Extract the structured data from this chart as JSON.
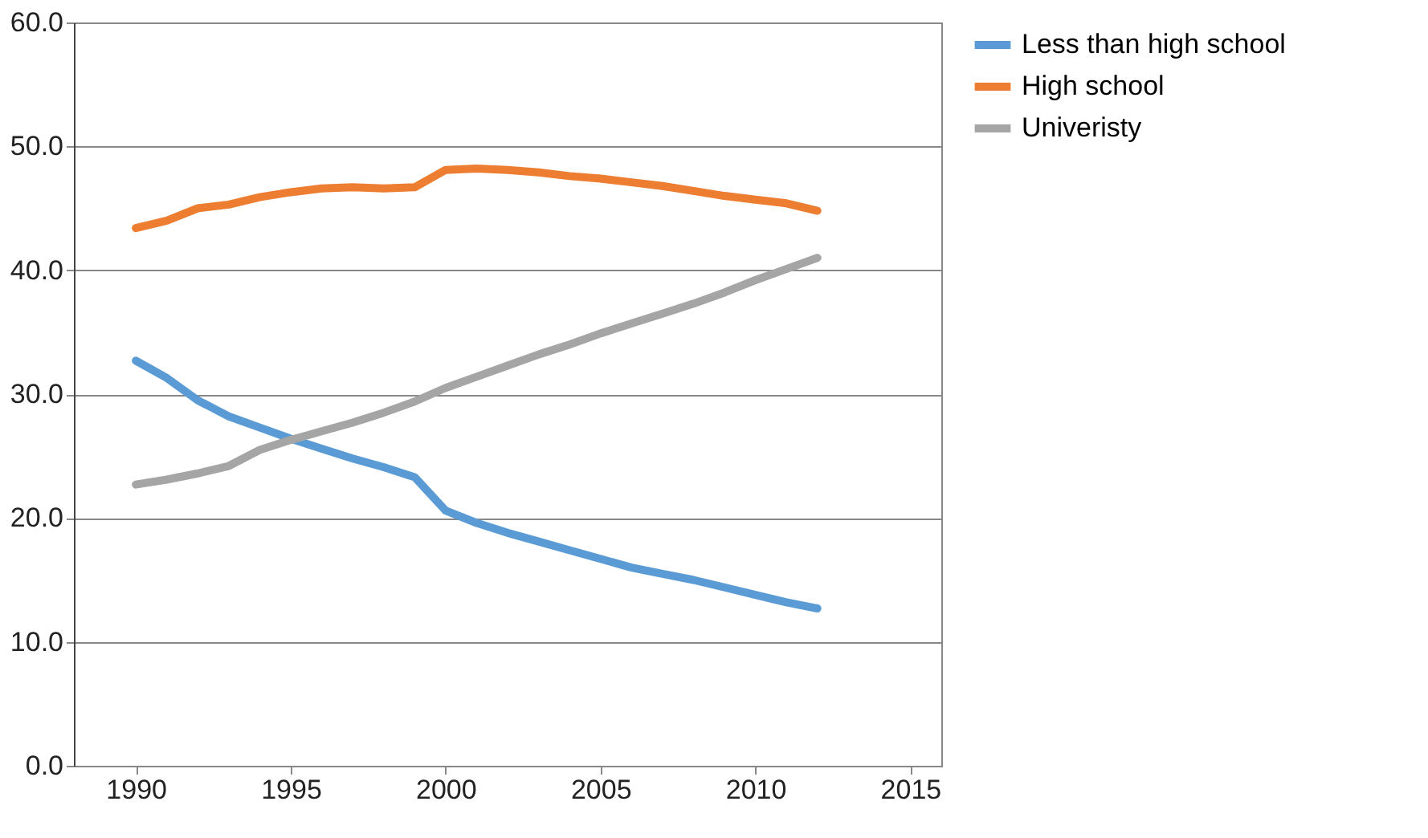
{
  "chart_data": {
    "type": "line",
    "x": [
      1990,
      1991,
      1992,
      1993,
      1994,
      1995,
      1996,
      1997,
      1998,
      1999,
      2000,
      2001,
      2002,
      2003,
      2004,
      2005,
      2006,
      2007,
      2008,
      2009,
      2010,
      2011,
      2012
    ],
    "series": [
      {
        "name": "Less than high school",
        "color": "#5b9bd5",
        "values": [
          32.7,
          31.3,
          29.5,
          28.2,
          27.3,
          26.4,
          25.6,
          24.8,
          24.1,
          23.3,
          20.6,
          19.6,
          18.8,
          18.1,
          17.4,
          16.7,
          16.0,
          15.5,
          15.0,
          14.4,
          13.8,
          13.2,
          12.7
        ]
      },
      {
        "name": "High school",
        "color": "#ed7d31",
        "values": [
          43.4,
          44.0,
          45.0,
          45.3,
          45.9,
          46.3,
          46.6,
          46.7,
          46.6,
          46.7,
          48.1,
          48.2,
          48.1,
          47.9,
          47.6,
          47.4,
          47.1,
          46.8,
          46.4,
          46.0,
          45.7,
          45.4,
          44.8
        ]
      },
      {
        "name": "Univeristy",
        "color": "#a5a5a5",
        "values": [
          22.7,
          23.1,
          23.6,
          24.2,
          25.5,
          26.3,
          27.0,
          27.7,
          28.5,
          29.4,
          30.5,
          31.4,
          32.3,
          33.2,
          34.0,
          34.9,
          35.7,
          36.5,
          37.3,
          38.2,
          39.2,
          40.1,
          41.0
        ]
      }
    ],
    "xlim": [
      1988,
      2016
    ],
    "xticks": [
      1990,
      1995,
      2000,
      2005,
      2010,
      2015
    ],
    "ylim": [
      0,
      60
    ],
    "yticks": [
      {
        "value": 0,
        "label": "0.0"
      },
      {
        "value": 10,
        "label": "10.0"
      },
      {
        "value": 20,
        "label": "20.0"
      },
      {
        "value": 30,
        "label": "30.0"
      },
      {
        "value": 40,
        "label": "40.0"
      },
      {
        "value": 50,
        "label": "50.0"
      },
      {
        "value": 60,
        "label": "60.0"
      }
    ],
    "grid": "y",
    "legend": "right",
    "marker": "none",
    "line_style": "solid"
  }
}
